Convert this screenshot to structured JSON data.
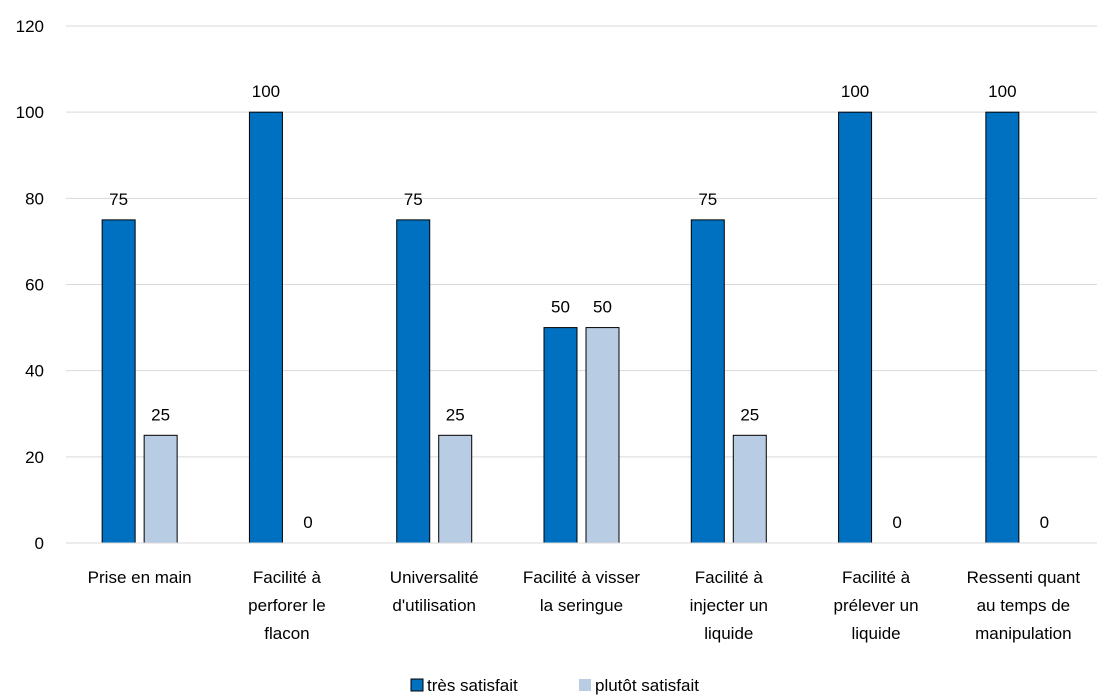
{
  "chart_data": {
    "type": "bar",
    "categories": [
      [
        "Prise en main"
      ],
      [
        "Facilité à",
        "perforer le",
        "flacon"
      ],
      [
        "Universalité",
        "d'utilisation"
      ],
      [
        "Facilité à visser",
        "la seringue"
      ],
      [
        "Facilité à",
        "injecter un",
        "liquide"
      ],
      [
        "Facilité à",
        "prélever un",
        "liquide"
      ],
      [
        "Ressenti quant",
        "au temps de",
        "manipulation"
      ]
    ],
    "series": [
      {
        "name": "très satisfait",
        "color": "#0070C0",
        "values": [
          75,
          100,
          75,
          50,
          75,
          100,
          100
        ]
      },
      {
        "name": "plutôt satisfait",
        "color": "#B8CCE4",
        "values": [
          25,
          0,
          25,
          50,
          25,
          0,
          0
        ]
      }
    ],
    "ylim": [
      0,
      120
    ],
    "yticks": [
      0,
      20,
      40,
      60,
      80,
      100,
      120
    ],
    "grid": true,
    "legend": "bottom",
    "data_labels": true
  }
}
